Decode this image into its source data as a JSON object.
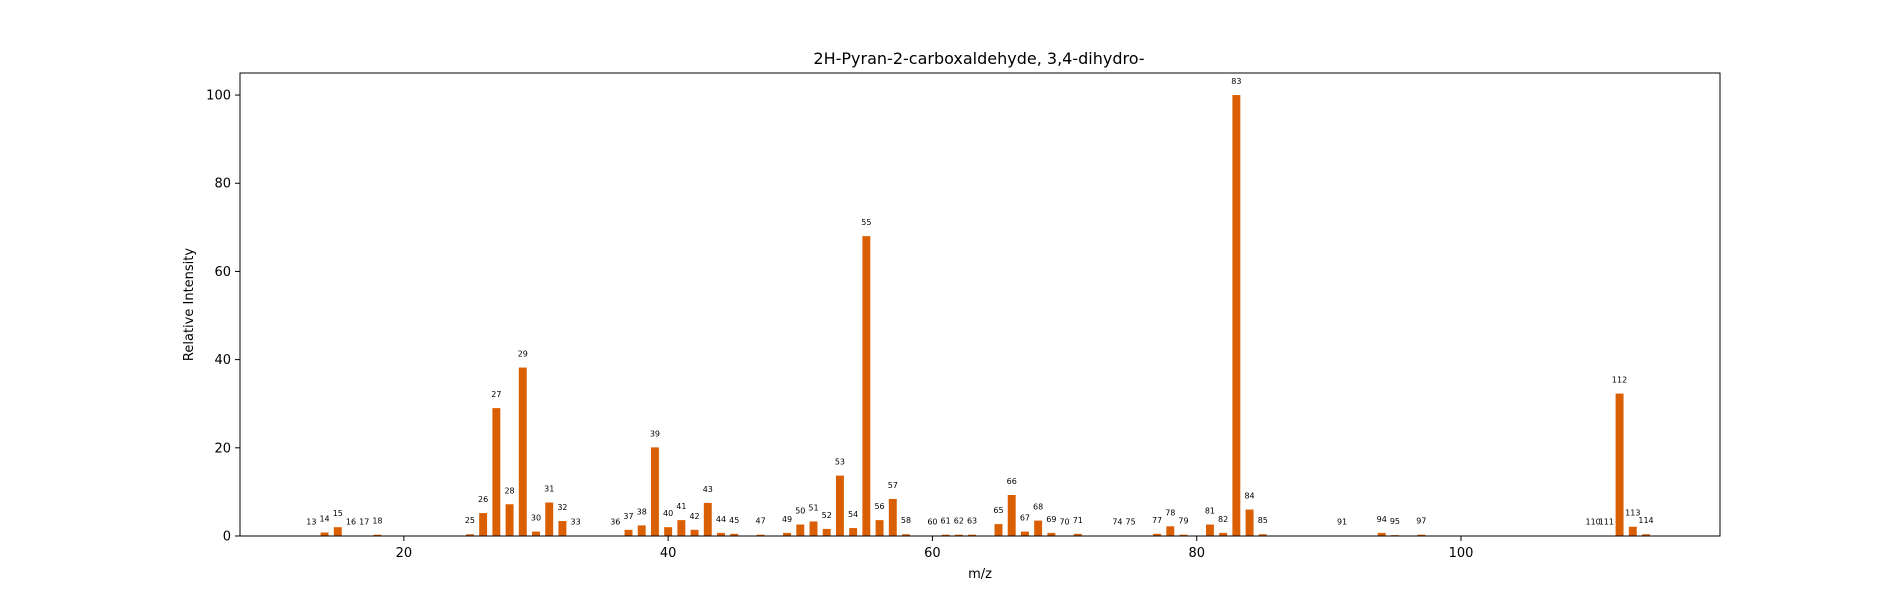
{
  "chart_data": {
    "type": "bar",
    "title": "2H-Pyran-2-carboxaldehyde, 3,4-dihydro-",
    "xlabel": "m/z",
    "ylabel": "Relative Intensity",
    "xlim": [
      7.6,
      119.6
    ],
    "ylim": [
      0,
      105
    ],
    "xticks": [
      20,
      40,
      60,
      80,
      100
    ],
    "yticks": [
      0,
      20,
      40,
      60,
      80,
      100
    ],
    "grid": false,
    "bar_color": "#d95f02",
    "x": [
      13,
      14,
      15,
      16,
      17,
      18,
      25,
      26,
      27,
      28,
      29,
      30,
      31,
      32,
      33,
      36,
      37,
      38,
      39,
      40,
      41,
      42,
      43,
      44,
      45,
      47,
      49,
      50,
      51,
      52,
      53,
      54,
      55,
      56,
      57,
      58,
      60,
      61,
      62,
      63,
      65,
      66,
      67,
      68,
      69,
      70,
      71,
      74,
      75,
      77,
      78,
      79,
      81,
      82,
      83,
      84,
      85,
      91,
      94,
      95,
      97,
      110,
      111,
      112,
      113,
      114
    ],
    "values": [
      0.1,
      0.8,
      2.0,
      0.1,
      0.1,
      0.3,
      0.4,
      5.2,
      29.0,
      7.2,
      38.2,
      1.0,
      7.6,
      3.4,
      0.1,
      0.1,
      1.4,
      2.4,
      20.1,
      2.0,
      3.6,
      1.4,
      7.5,
      0.7,
      0.5,
      0.3,
      0.7,
      2.6,
      3.3,
      1.6,
      13.7,
      1.8,
      68.0,
      3.6,
      8.4,
      0.4,
      0.1,
      0.3,
      0.3,
      0.3,
      2.7,
      9.3,
      1.0,
      3.5,
      0.7,
      0.1,
      0.5,
      0.1,
      0.1,
      0.5,
      2.2,
      0.3,
      2.6,
      0.7,
      100.0,
      6.0,
      0.4,
      0.1,
      0.7,
      0.2,
      0.3,
      0.1,
      0.1,
      32.3,
      2.1,
      0.4
    ]
  }
}
